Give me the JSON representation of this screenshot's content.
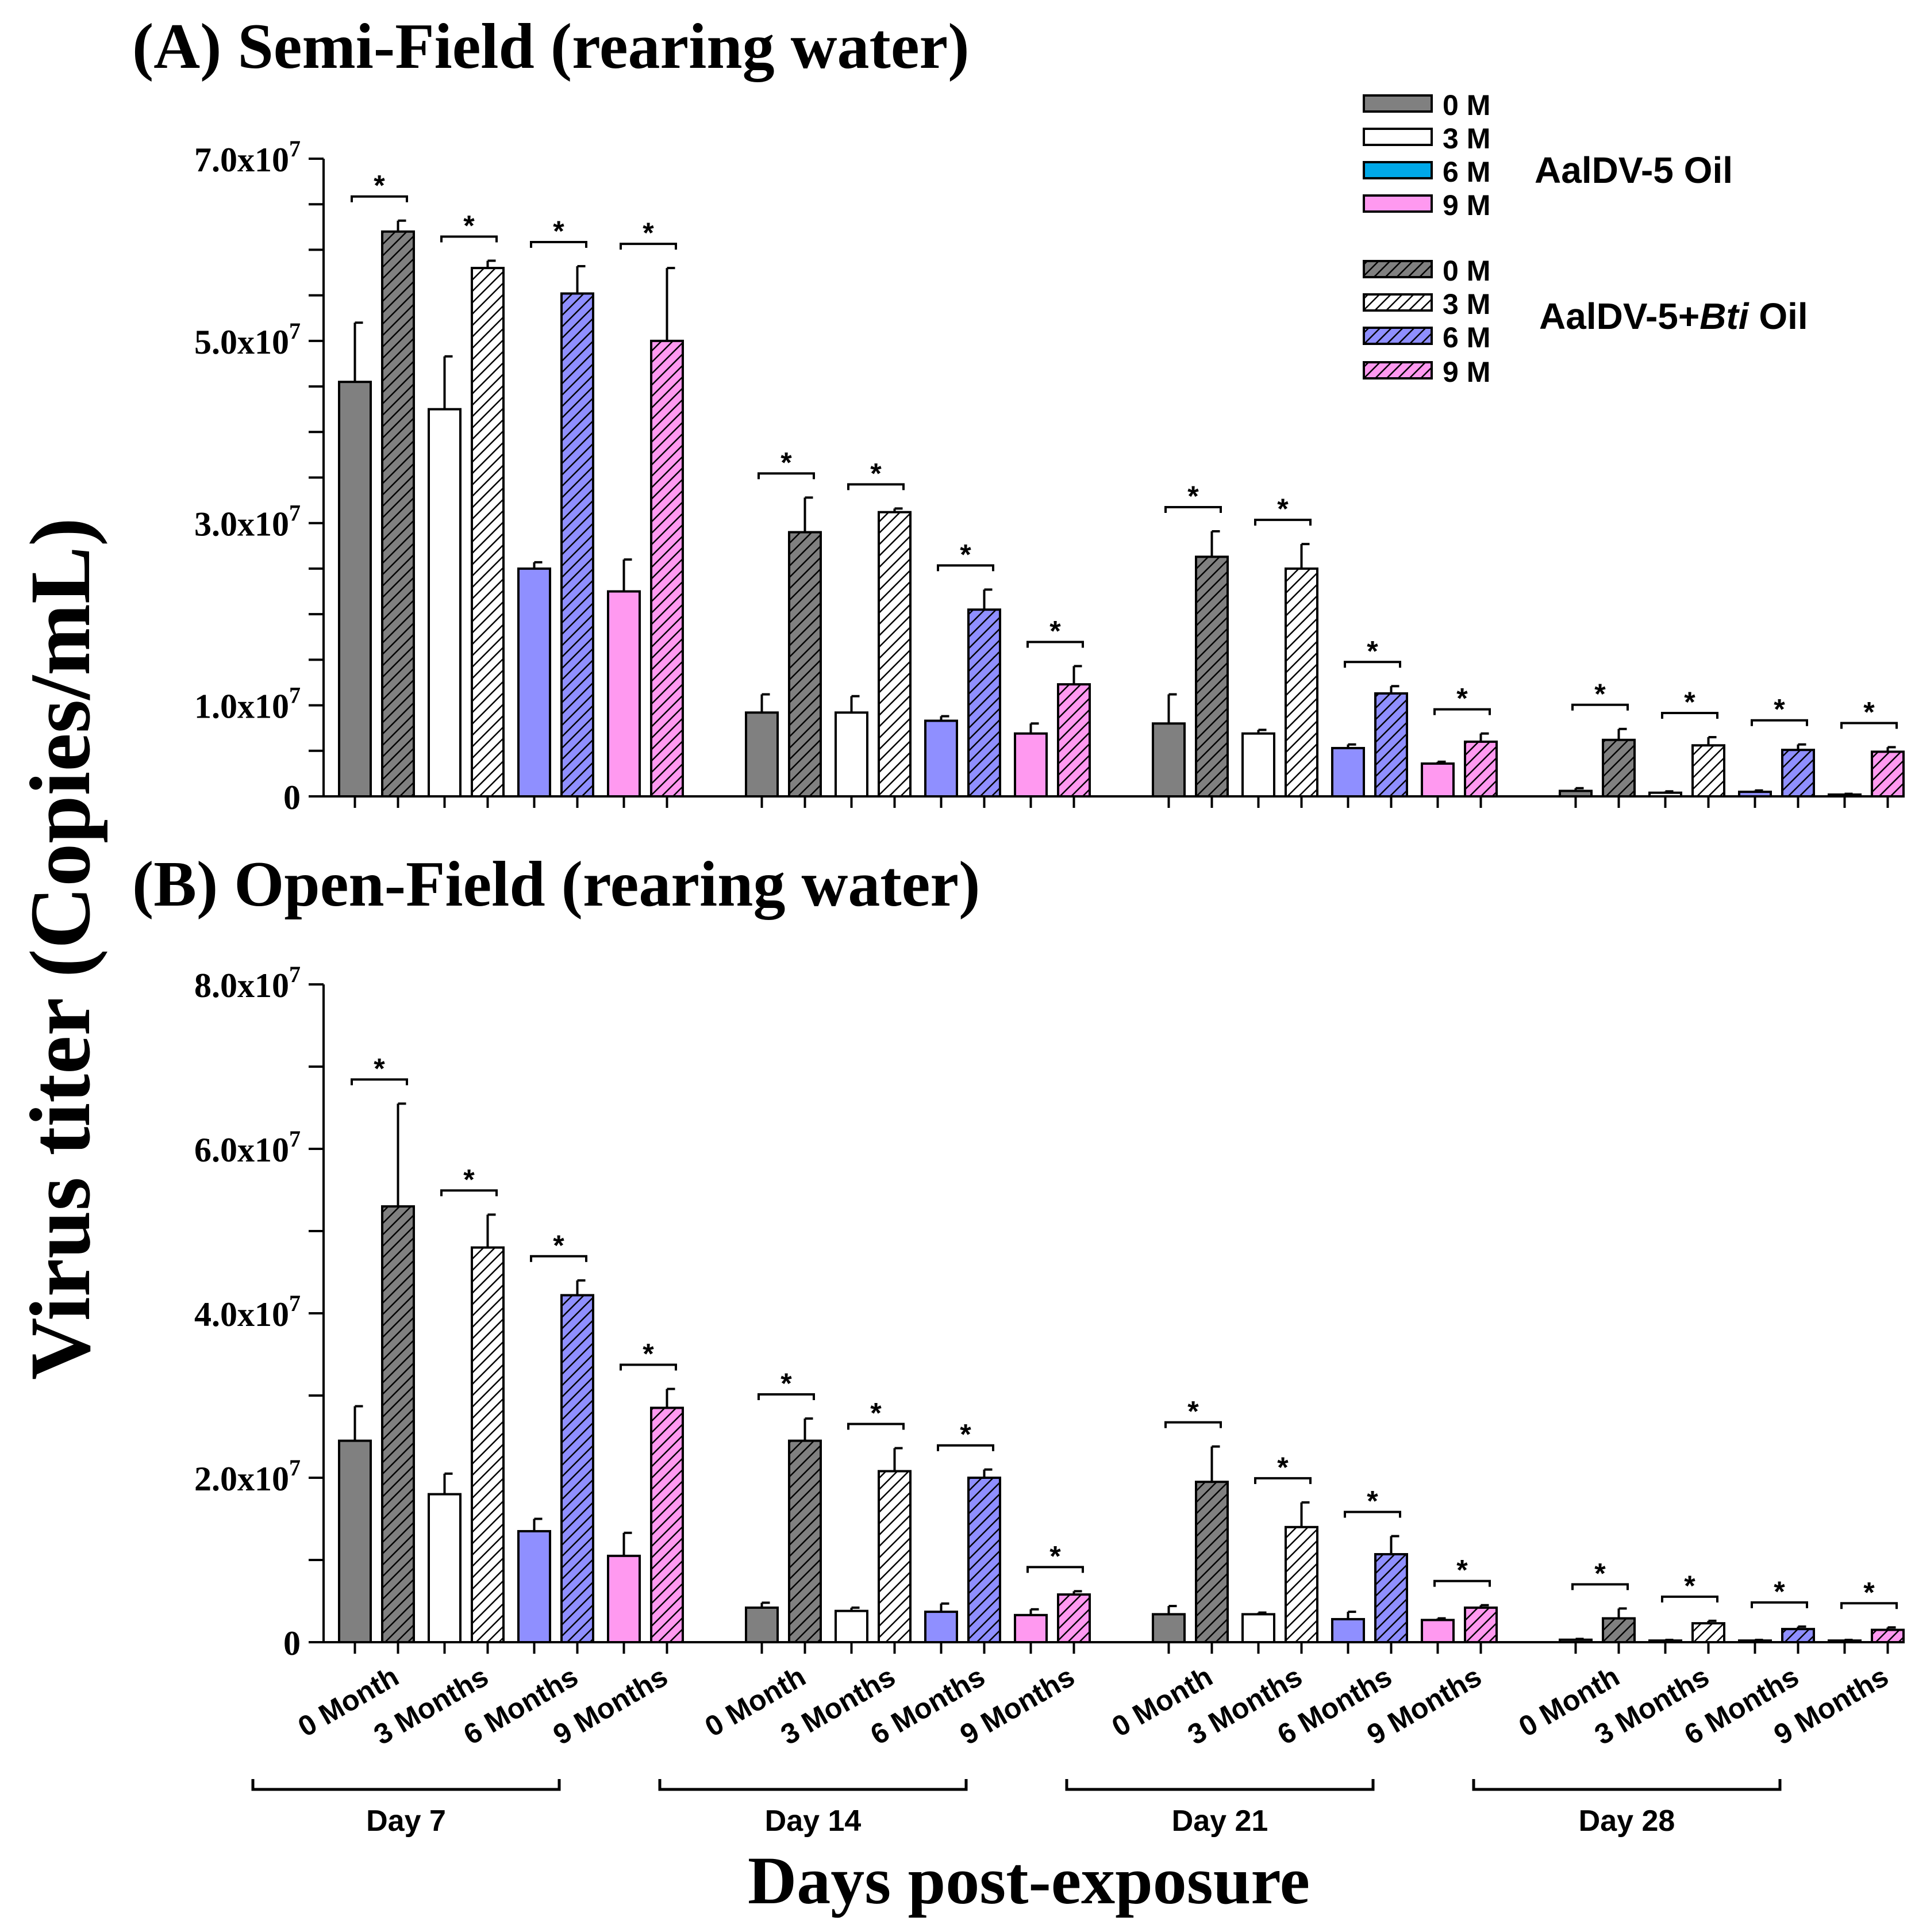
{
  "panels": [
    {
      "panel_title": "(A) Semi-Field (rearing water)",
      "chart_data": {
        "type": "bar",
        "title": "(A) Semi-Field (rearing water)",
        "xlabel": "",
        "ylabel": "",
        "ylim": [
          0,
          70000000
        ],
        "grid": false,
        "y_ticks": [
          {
            "value": 0,
            "label": "0"
          },
          {
            "value": 10000000,
            "label": "1.0x10",
            "exp": "7"
          },
          {
            "value": 30000000,
            "label": "3.0x10",
            "exp": "7"
          },
          {
            "value": 50000000,
            "label": "5.0x10",
            "exp": "7"
          },
          {
            "value": 70000000,
            "label": "7.0x10",
            "exp": "7"
          }
        ],
        "groups": [
          {
            "label": "Day 7",
            "pairs": [
              {
                "category": "0 Month",
                "oil": 45500000,
                "oil_err": 6500000,
                "bti": 62000000,
                "bti_err": 1200000,
                "sig": "*"
              },
              {
                "category": "3 Months",
                "oil": 42500000,
                "oil_err": 5800000,
                "bti": 58000000,
                "bti_err": 800000,
                "sig": "*"
              },
              {
                "category": "6 Months",
                "oil": 25000000,
                "oil_err": 700000,
                "bti": 55200000,
                "bti_err": 3000000,
                "sig": "*"
              },
              {
                "category": "9 Months",
                "oil": 22500000,
                "oil_err": 3500000,
                "bti": 50000000,
                "bti_err": 8000000,
                "sig": "*"
              }
            ]
          },
          {
            "label": "Day 14",
            "pairs": [
              {
                "category": "0 Month",
                "oil": 9200000,
                "oil_err": 2000000,
                "bti": 29000000,
                "bti_err": 3800000,
                "sig": "*"
              },
              {
                "category": "3 Months",
                "oil": 9200000,
                "oil_err": 1800000,
                "bti": 31200000,
                "bti_err": 400000,
                "sig": "*"
              },
              {
                "category": "6 Months",
                "oil": 8300000,
                "oil_err": 500000,
                "bti": 20500000,
                "bti_err": 2200000,
                "sig": "*"
              },
              {
                "category": "9 Months",
                "oil": 6900000,
                "oil_err": 1100000,
                "bti": 12300000,
                "bti_err": 2000000,
                "sig": "*"
              }
            ]
          },
          {
            "label": "Day 21",
            "pairs": [
              {
                "category": "0 Month",
                "oil": 8000000,
                "oil_err": 3200000,
                "bti": 26300000,
                "bti_err": 2800000,
                "sig": "*"
              },
              {
                "category": "3 Months",
                "oil": 6900000,
                "oil_err": 400000,
                "bti": 25000000,
                "bti_err": 2700000,
                "sig": "*"
              },
              {
                "category": "6 Months",
                "oil": 5300000,
                "oil_err": 400000,
                "bti": 11300000,
                "bti_err": 800000,
                "sig": "*"
              },
              {
                "category": "9 Months",
                "oil": 3600000,
                "oil_err": 200000,
                "bti": 6000000,
                "bti_err": 900000,
                "sig": "*"
              }
            ]
          },
          {
            "label": "Day 28",
            "pairs": [
              {
                "category": "0 Month",
                "oil": 600000,
                "oil_err": 300000,
                "bti": 6200000,
                "bti_err": 1200000,
                "sig": "*"
              },
              {
                "category": "3 Months",
                "oil": 400000,
                "oil_err": 150000,
                "bti": 5600000,
                "bti_err": 900000,
                "sig": "*"
              },
              {
                "category": "6 Months",
                "oil": 500000,
                "oil_err": 150000,
                "bti": 5100000,
                "bti_err": 600000,
                "sig": "*"
              },
              {
                "category": "9 Months",
                "oil": 200000,
                "oil_err": 80000,
                "bti": 4900000,
                "bti_err": 500000,
                "sig": "*"
              }
            ]
          }
        ]
      }
    },
    {
      "panel_title": "(B) Open-Field (rearing water)",
      "chart_data": {
        "type": "bar",
        "title": "(B) Open-Field (rearing water)",
        "xlabel": "",
        "ylabel": "",
        "ylim": [
          0,
          80000000
        ],
        "grid": false,
        "y_ticks": [
          {
            "value": 0,
            "label": "0"
          },
          {
            "value": 20000000,
            "label": "2.0x10",
            "exp": "7"
          },
          {
            "value": 40000000,
            "label": "4.0x10",
            "exp": "7"
          },
          {
            "value": 60000000,
            "label": "6.0x10",
            "exp": "7"
          },
          {
            "value": 80000000,
            "label": "8.0x10",
            "exp": "7"
          }
        ],
        "groups": [
          {
            "label": "Day 7",
            "pairs": [
              {
                "category": "0 Month",
                "oil": 24500000,
                "oil_err": 4200000,
                "bti": 53000000,
                "bti_err": 12500000,
                "sig": "*"
              },
              {
                "category": "3 Months",
                "oil": 18000000,
                "oil_err": 2500000,
                "bti": 48000000,
                "bti_err": 4000000,
                "sig": "*"
              },
              {
                "category": "6 Months",
                "oil": 13500000,
                "oil_err": 1500000,
                "bti": 42200000,
                "bti_err": 1800000,
                "sig": "*"
              },
              {
                "category": "9 Months",
                "oil": 10500000,
                "oil_err": 2800000,
                "bti": 28500000,
                "bti_err": 2300000,
                "sig": "*"
              }
            ]
          },
          {
            "label": "Day 14",
            "pairs": [
              {
                "category": "0 Month",
                "oil": 4200000,
                "oil_err": 600000,
                "bti": 24500000,
                "bti_err": 2700000,
                "sig": "*"
              },
              {
                "category": "3 Months",
                "oil": 3800000,
                "oil_err": 400000,
                "bti": 20800000,
                "bti_err": 2800000,
                "sig": "*"
              },
              {
                "category": "6 Months",
                "oil": 3700000,
                "oil_err": 1000000,
                "bti": 20000000,
                "bti_err": 1000000,
                "sig": "*"
              },
              {
                "category": "9 Months",
                "oil": 3300000,
                "oil_err": 700000,
                "bti": 5800000,
                "bti_err": 400000,
                "sig": "*"
              }
            ]
          },
          {
            "label": "Day 21",
            "pairs": [
              {
                "category": "0 Month",
                "oil": 3400000,
                "oil_err": 1000000,
                "bti": 19500000,
                "bti_err": 4300000,
                "sig": "*"
              },
              {
                "category": "3 Months",
                "oil": 3400000,
                "oil_err": 200000,
                "bti": 14000000,
                "bti_err": 3000000,
                "sig": "*"
              },
              {
                "category": "6 Months",
                "oil": 2800000,
                "oil_err": 900000,
                "bti": 10700000,
                "bti_err": 2200000,
                "sig": "*"
              },
              {
                "category": "9 Months",
                "oil": 2700000,
                "oil_err": 200000,
                "bti": 4200000,
                "bti_err": 300000,
                "sig": "*"
              }
            ]
          },
          {
            "label": "Day 28",
            "pairs": [
              {
                "category": "0 Month",
                "oil": 300000,
                "oil_err": 100000,
                "bti": 2900000,
                "bti_err": 1200000,
                "sig": "*"
              },
              {
                "category": "3 Months",
                "oil": 200000,
                "oil_err": 80000,
                "bti": 2300000,
                "bti_err": 300000,
                "sig": "*"
              },
              {
                "category": "6 Months",
                "oil": 200000,
                "oil_err": 80000,
                "bti": 1600000,
                "bti_err": 300000,
                "sig": "*"
              },
              {
                "category": "9 Months",
                "oil": 200000,
                "oil_err": 80000,
                "bti": 1500000,
                "bti_err": 300000,
                "sig": "*"
              }
            ]
          }
        ]
      }
    }
  ],
  "y_axis_title": "Virus titer (Copies/mL)",
  "x_axis_title": "Days post-exposure",
  "legend": {
    "placement": "top-right",
    "groups": [
      {
        "name": "AalDV-5 Oil",
        "name_parts": [
          {
            "text": "AalDV-5 Oil",
            "italic": false
          }
        ],
        "items": [
          {
            "label": "0 M",
            "color": "#808080",
            "hatched": false
          },
          {
            "label": "3 M",
            "color": "#ffffff",
            "hatched": false
          },
          {
            "label": "6 M",
            "color": "#00a8e8",
            "hatched": false
          },
          {
            "label": "9 M",
            "color": "#ff99f0",
            "hatched": false
          }
        ]
      },
      {
        "name": "AalDV-5+Bti Oil",
        "name_parts": [
          {
            "text": "AalDV-5+",
            "italic": false
          },
          {
            "text": "Bti",
            "italic": true
          },
          {
            "text": " Oil",
            "italic": false
          }
        ],
        "items": [
          {
            "label": "0 M",
            "color": "#808080",
            "hatched": true
          },
          {
            "label": "3 M",
            "color": "#ffffff",
            "hatched": true
          },
          {
            "label": "6 M",
            "color": "#8f8fff",
            "hatched": true
          },
          {
            "label": "9 M",
            "color": "#ff99f0",
            "hatched": true
          }
        ]
      }
    ]
  },
  "series_colors": [
    "#808080",
    "#ffffff",
    "#8f8fff",
    "#ff99f0"
  ]
}
